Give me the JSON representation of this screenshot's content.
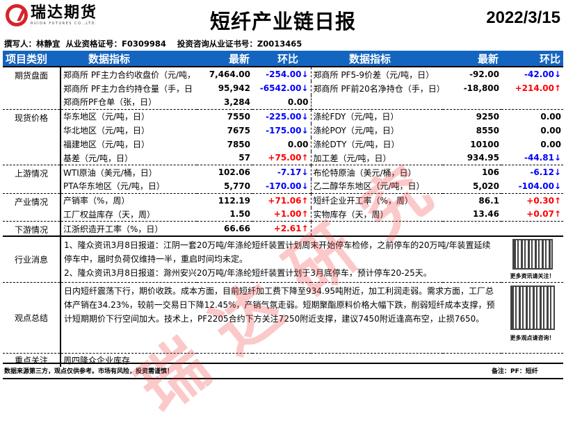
{
  "brand": {
    "name_cn": "瑞达期货",
    "name_en": "RUIDA FUTURES CO.,LTD.",
    "accent": "#d8232a",
    "header_bg": "#1465c0"
  },
  "report": {
    "title": "短纤产业链日报",
    "date": "2022/3/15",
    "authors": "撰写人：林静宜  从业资格证号：F0309984    投资咨询从业证书号：Z0013465"
  },
  "columns": {
    "category": "项目类别",
    "indicator": "数据指标",
    "latest": "最新",
    "change": "环比"
  },
  "rows": [
    {
      "cat": "期货盘面",
      "l": [
        "郑商所 PF主力合约收盘价（元/吨，",
        "7,464.00",
        "-254.00↓",
        "down"
      ],
      "r": [
        "郑商所 PF5-9价差（元/吨，日）",
        "-92.00",
        "-42.00↓",
        "down"
      ],
      "sep": "solid"
    },
    {
      "cat": "",
      "l": [
        "郑商所 PF主力合约持仓量（手，日",
        "95,942",
        "-6542.00↓",
        "down"
      ],
      "r": [
        "郑商所 PF前20名净持仓（手，日）",
        "-18,800",
        "+214.00↑",
        "up"
      ]
    },
    {
      "cat": "",
      "l": [
        "郑商所PF仓单（张，日）",
        "3,284",
        "0.00",
        ""
      ],
      "r": [
        "",
        "",
        "",
        ""
      ]
    },
    {
      "cat": "现货价格",
      "l": [
        "华东地区（元/吨，日）",
        "7550",
        "-225.00↓",
        "down"
      ],
      "r": [
        "涤纶FDY（元/吨，日）",
        "9250",
        "0.00",
        ""
      ],
      "sep": "sep"
    },
    {
      "cat": "",
      "l": [
        "华北地区（元/吨，日）",
        "7675",
        "-175.00↓",
        "down"
      ],
      "r": [
        "涤纶POY（元/吨，日）",
        "8550",
        "0.00",
        ""
      ]
    },
    {
      "cat": "",
      "l": [
        "福建地区（元/吨，日）",
        "7850",
        "0.00",
        ""
      ],
      "r": [
        "涤纶DTY（元/吨，日）",
        "10100",
        "0.00",
        ""
      ]
    },
    {
      "cat": "",
      "l": [
        "基差（元/吨，日）",
        "57",
        "+75.00↑",
        "up"
      ],
      "r": [
        "加工差（元/吨，日）",
        "934.95",
        "-44.81↓",
        "down"
      ]
    },
    {
      "cat": "上游情况",
      "l": [
        "WTI原油（美元/桶，日）",
        "102.06",
        "-7.17↓",
        "down"
      ],
      "r": [
        "布伦特原油（美元/桶，日）",
        "106",
        "-6.12↓",
        "down"
      ],
      "sep": "sep"
    },
    {
      "cat": "",
      "l": [
        "PTA华东地区（元/吨，日）",
        "5,770",
        "-170.00↓",
        "down"
      ],
      "r": [
        "乙二醇华东地区（元/吨，日）",
        "5,020",
        "-104.00↓",
        "down"
      ]
    },
    {
      "cat": "产业情况",
      "l": [
        "产销率（%，周）",
        "112.19",
        "+71.06↑",
        "up"
      ],
      "r": [
        "短纤企业开工率（%，周）",
        "86.1",
        "+0.30↑",
        "up"
      ],
      "sep": "sep"
    },
    {
      "cat": "",
      "l": [
        "工厂权益库存（天，周）",
        "1.50",
        "+1.00↑",
        "up"
      ],
      "r": [
        "实物库存（天，周）",
        "13.46",
        "+0.07↑",
        "up"
      ]
    },
    {
      "cat": "下游情况",
      "l": [
        "江浙织造开工率（%，日）",
        "66.66",
        "+2.61↑",
        "up"
      ],
      "r": [
        "",
        "",
        "",
        ""
      ],
      "sep": "sep"
    }
  ],
  "news": {
    "label": "行业消息",
    "text1": "1、隆众资讯3月8日报道：江阴一套20万吨/年涤纶短纤装置计划周末开始停车检修，之前停车的20万吨/年装置延续停车中，届时负荷仅维持一半，重启时间均未定。",
    "text2": "2、隆众资讯3月8日报道：滁州安兴20万吨/年涤纶短纤装置计划于3月底停车，预计停车20-25天。",
    "qr_caption": "更多资讯请关注！"
  },
  "view": {
    "label": "观点总结",
    "text": "日内短纤震荡下行，期价收跌。成本方面，目前短纤加工费下降至934.95吨附近，加工利润走弱。需求方面，工厂总体产销在34.23%，较前一交易日下降12.45%，产销气氛走弱。短期聚酯原料价格大幅下跌，削弱短纤成本支撑，预计短期期价下行空间加大。技术上，PF2205合约下方关注7250附近支撑，建议7450附近逢高布空，止损7650。",
    "qr_caption": "更多观点请咨询！"
  },
  "focus": {
    "label": "重点关注",
    "text": "周四隆众企业库存"
  },
  "footer": {
    "disclaimer": "数据来源第三方，观点仅供参考。市场有风险，投资需谨慎！",
    "note": "备注：PF：短纤"
  },
  "watermark": "瑞达研究",
  "colors": {
    "up": "#ff0000",
    "down": "#0000ff"
  }
}
